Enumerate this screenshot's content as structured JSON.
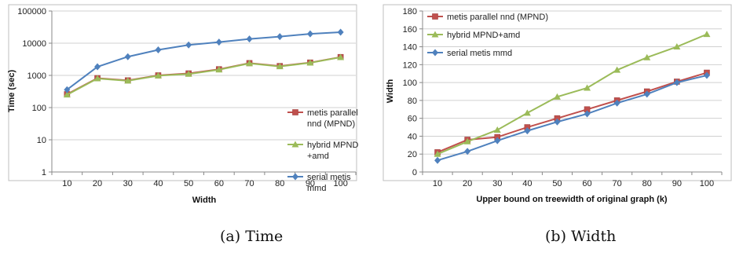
{
  "captions": {
    "a": "(a)  Time",
    "b": "(b)  Width"
  },
  "chart_data": [
    {
      "type": "line",
      "yscale": "log",
      "xlabel": "Width",
      "ylabel": "Time (sec)",
      "categories": [
        "10",
        "20",
        "30",
        "40",
        "50",
        "60",
        "70",
        "80",
        "90",
        "100"
      ],
      "yticks": [
        "1",
        "10",
        "100",
        "1000",
        "10000",
        "100000"
      ],
      "ylim": [
        1,
        100000
      ],
      "grid": true,
      "legend_position": "right",
      "series": [
        {
          "name": "metis parallel nnd (MPND)",
          "legend_lines": [
            "metis parallel",
            "nnd (MPND)"
          ],
          "color": "#c0504d",
          "marker": "square",
          "values": [
            260,
            820,
            700,
            1000,
            1150,
            1550,
            2400,
            1950,
            2500,
            3700
          ]
        },
        {
          "name": "hybrid MPND +amd",
          "legend_lines": [
            "hybrid MPND",
            "+amd"
          ],
          "color": "#9bbb59",
          "marker": "triangle",
          "values": [
            250,
            800,
            680,
            980,
            1100,
            1500,
            2350,
            1900,
            2450,
            3650
          ]
        },
        {
          "name": "serial metis mmd",
          "legend_lines": [
            "serial metis",
            "mmd"
          ],
          "color": "#4f81bd",
          "marker": "diamond",
          "values": [
            360,
            1850,
            3800,
            6200,
            8800,
            10800,
            13500,
            16000,
            19500,
            22000
          ]
        }
      ]
    },
    {
      "type": "line",
      "xlabel": "Upper bound on treewidth of original graph (k)",
      "ylabel": "Width",
      "categories": [
        "10",
        "20",
        "30",
        "40",
        "50",
        "60",
        "70",
        "80",
        "90",
        "100"
      ],
      "yticks": [
        "0",
        "20",
        "40",
        "60",
        "80",
        "100",
        "120",
        "140",
        "160",
        "180"
      ],
      "ylim": [
        0,
        180
      ],
      "grid": true,
      "legend_position": "top-left",
      "series": [
        {
          "name": "metis parallel nnd (MPND)",
          "legend_lines": [
            "metis parallel nnd (MPND)"
          ],
          "color": "#c0504d",
          "marker": "square",
          "values": [
            22,
            36,
            39,
            50,
            60,
            70,
            80,
            90,
            101,
            111
          ]
        },
        {
          "name": "hybrid MPND+amd",
          "legend_lines": [
            "hybrid MPND+amd"
          ],
          "color": "#9bbb59",
          "marker": "triangle",
          "values": [
            20,
            34,
            47,
            66,
            84,
            94,
            114,
            128,
            140,
            154
          ]
        },
        {
          "name": "serial metis mmd",
          "legend_lines": [
            "serial metis mmd"
          ],
          "color": "#4f81bd",
          "marker": "diamond",
          "values": [
            13,
            23,
            35,
            46,
            56,
            65,
            77,
            87,
            100,
            108
          ]
        }
      ]
    }
  ]
}
